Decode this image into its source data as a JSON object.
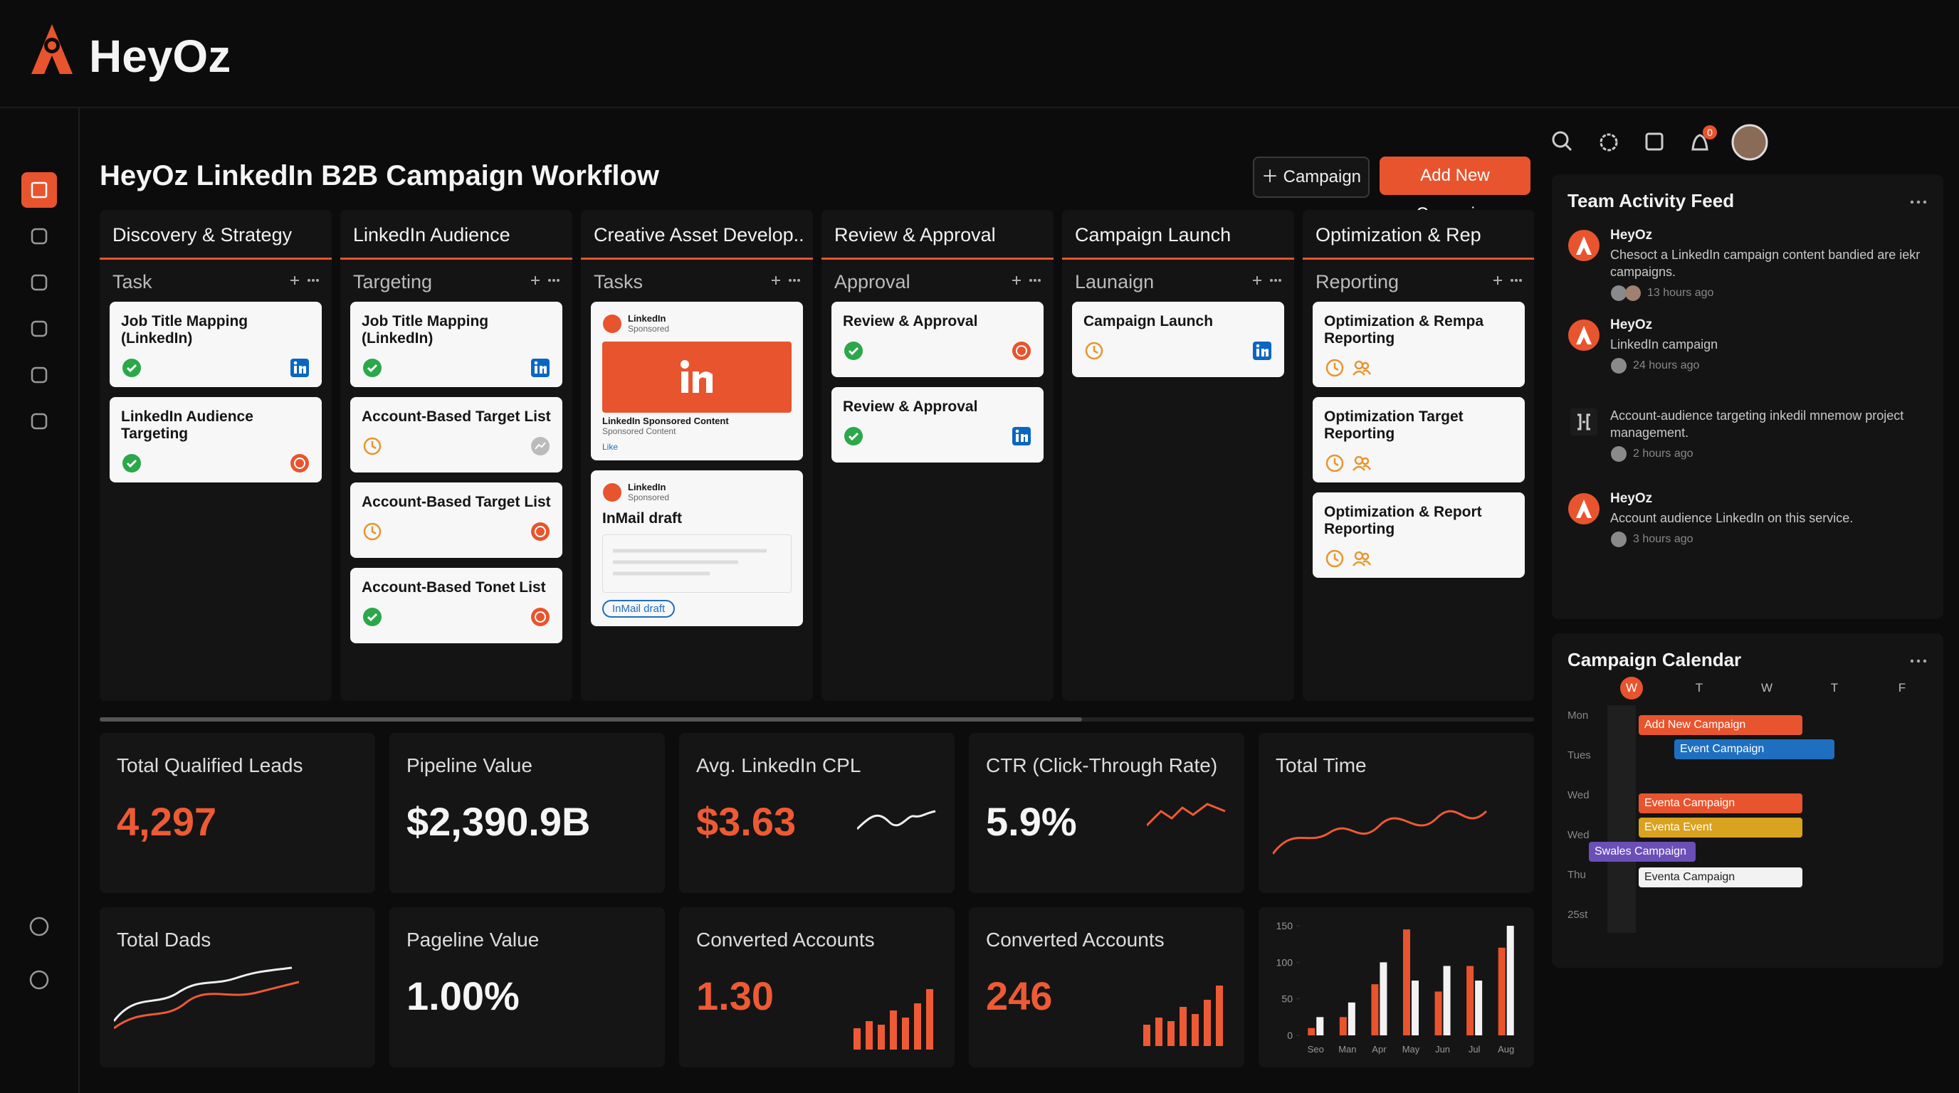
{
  "header": {
    "brand": "HeyOz",
    "notifications": "0"
  },
  "page_title": "HeyOz LinkedIn B2B Campaign Workflow",
  "buttons": {
    "campaign": "Campaign",
    "add_new": "Add New Campaign"
  },
  "columns": [
    {
      "title": "Discovery & Strategy",
      "section": "Task",
      "cards": [
        {
          "title": "Job Title Mapping (LinkedIn)"
        },
        {
          "title": "LinkedIn Audience Targeting"
        }
      ]
    },
    {
      "title": "LinkedIn Audience",
      "section": "Targeting",
      "cards": [
        {
          "title": "Job Title Mapping (LinkedIn)"
        },
        {
          "title": "Account-Based Target List"
        },
        {
          "title": "Account-Based Target List"
        },
        {
          "title": "Account-Based Tonet List"
        }
      ]
    },
    {
      "title": "Creative Asset Develop..",
      "section": "Tasks",
      "cards": [
        {
          "source": "LinkedIn",
          "tag": "Sponsored",
          "caption": "LinkedIn Sponsored Content",
          "subcaption": "Sponsored Content",
          "action": "Like"
        },
        {
          "source": "LinkedIn",
          "tag": "Sponsored",
          "title": "InMail draft",
          "chip": "InMail draft"
        }
      ]
    },
    {
      "title": "Review & Approval",
      "section": "Approval",
      "cards": [
        {
          "title": "Review & Approval"
        },
        {
          "title": "Review & Approval"
        }
      ]
    },
    {
      "title": "Campaign Launch",
      "section": "Launaign",
      "cards": [
        {
          "title": "Campaign Launch"
        }
      ]
    },
    {
      "title": "Optimization & Rep",
      "section": "Reporting",
      "cards": [
        {
          "title": "Optimization & Rempa Reporting"
        },
        {
          "title": "Optimization Target Reporting"
        },
        {
          "title": "Optimization & Report Reporting"
        }
      ]
    }
  ],
  "activity_feed": {
    "title": "Team Activity Feed",
    "items": [
      {
        "author": "HeyOz",
        "text": "Chesoct a LinkedIn campaign content bandied are iekr campaigns.",
        "time": "13 hours ago"
      },
      {
        "author": "HeyOz",
        "text": "LinkedIn campaign",
        "time": "24 hours ago"
      },
      {
        "text": "Account-audience targeting inkedil mnemow project management.",
        "time": "2 hours ago"
      },
      {
        "author": "HeyOz",
        "text": "Account audience LinkedIn on this service.",
        "time": "3 hours ago"
      }
    ]
  },
  "calendar": {
    "title": "Campaign Calendar",
    "days": [
      "W",
      "T",
      "W",
      "T",
      "F"
    ],
    "rows": [
      "Mon",
      "Tues",
      "Wed",
      "Wed",
      "Thu",
      "25st"
    ],
    "events": [
      {
        "label": "Add New Campaign",
        "color": "#e8542e"
      },
      {
        "label": "Event Campaign",
        "color": "#1f6fc0"
      },
      {
        "label": "Eventa Campaign",
        "color": "#e8542e"
      },
      {
        "label": "Eventa Event",
        "color": "#d9a21f"
      },
      {
        "label": "Swales Campaign",
        "color": "#6b4fb8"
      },
      {
        "label": "Eventa Campaign",
        "color": "#f2f2f2"
      }
    ]
  },
  "kpis": [
    {
      "label": "Total Qualified Leads",
      "value": "4,297"
    },
    {
      "label": "Pipeline Value",
      "value": "$2,390.9B"
    },
    {
      "label": "Avg. LinkedIn CPL",
      "value": "$3.63"
    },
    {
      "label": "CTR (Click-Through Rate)",
      "value": "5.9%"
    },
    {
      "label": "Total Time"
    },
    {
      "label": "Total Dads"
    },
    {
      "label": "Pageline Value",
      "value": "1.00%"
    },
    {
      "label": "Converted Accounts",
      "value": "1.30"
    },
    {
      "label": "Converted Accounts",
      "value": "246"
    }
  ],
  "chart_data": {
    "type": "bar",
    "categories": [
      "Seo",
      "Man",
      "Apr",
      "May",
      "Jun",
      "Jul",
      "Aug"
    ],
    "series": [
      {
        "color": "#e8542e",
        "values": [
          10,
          25,
          70,
          145,
          60,
          95,
          120
        ]
      },
      {
        "color": "#f2f2f2",
        "values": [
          25,
          45,
          100,
          75,
          95,
          75,
          150
        ]
      }
    ],
    "ylim": [
      0,
      150
    ],
    "yticks": [
      0,
      50,
      100,
      150
    ]
  }
}
